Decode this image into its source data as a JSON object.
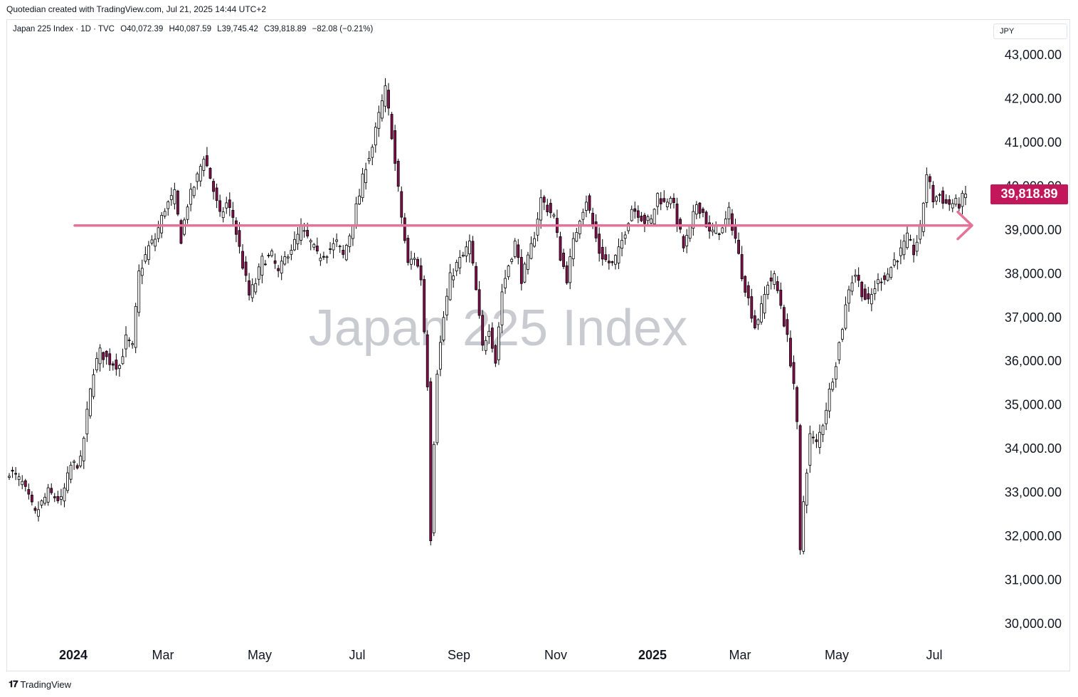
{
  "caption": "Quotedian created with TradingView.com, Jul 21, 2025 14:44 UTC+2",
  "legend": {
    "symbol": "Japan 225 Index · 1D · TVC",
    "open": "O40,072.39",
    "high": "H40,087.59",
    "low": "L39,745.42",
    "close": "C39,818.89",
    "change": "−82.08 (−0.21%)"
  },
  "currency": "JPY",
  "watermark": "Japan 225 Index",
  "last_price_label": "39,818.89",
  "footer": "TradingView",
  "colors": {
    "up": "#ffffff",
    "down": "#880e4f",
    "wick": "#000000",
    "line": "#e57399",
    "badge": "#c2185b"
  },
  "chart_data": {
    "type": "candlestick",
    "title": "Japan 225 Index",
    "interval": "1D",
    "currency": "JPY",
    "ylim": [
      29500,
      43500
    ],
    "y_ticks": [
      "30,000.00",
      "31,000.00",
      "32,000.00",
      "33,000.00",
      "34,000.00",
      "35,000.00",
      "36,000.00",
      "37,000.00",
      "38,000.00",
      "39,000.00",
      "40,000.00",
      "41,000.00",
      "42,000.00",
      "43,000.00"
    ],
    "y_tick_values": [
      30000,
      31000,
      32000,
      33000,
      34000,
      35000,
      36000,
      37000,
      38000,
      39000,
      40000,
      41000,
      42000,
      43000
    ],
    "x_ticks": [
      {
        "label": "2024",
        "index": 0,
        "bold": true
      },
      {
        "label": "Mar",
        "index": 1,
        "bold": false
      },
      {
        "label": "May",
        "index": 2,
        "bold": false
      },
      {
        "label": "Jul",
        "index": 3,
        "bold": false
      },
      {
        "label": "Sep",
        "index": 4,
        "bold": false
      },
      {
        "label": "Nov",
        "index": 5,
        "bold": false
      },
      {
        "label": "2025",
        "index": 6,
        "bold": true
      },
      {
        "label": "Mar",
        "index": 7,
        "bold": false
      },
      {
        "label": "May",
        "index": 8,
        "bold": false
      },
      {
        "label": "Jul",
        "index": 9,
        "bold": false
      }
    ],
    "last_close": 39818.89,
    "horizontal_ray": {
      "price": 39100
    },
    "close_path": [
      [
        0,
        33500
      ],
      [
        4,
        33200
      ],
      [
        8,
        32500
      ],
      [
        12,
        33000
      ],
      [
        16,
        32800
      ],
      [
        19,
        33600
      ],
      [
        22,
        33700
      ],
      [
        24,
        34800
      ],
      [
        26,
        35800
      ],
      [
        28,
        36200
      ],
      [
        31,
        36000
      ],
      [
        34,
        35900
      ],
      [
        36,
        36500
      ],
      [
        38,
        36300
      ],
      [
        40,
        38000
      ],
      [
        43,
        38600
      ],
      [
        45,
        38800
      ],
      [
        48,
        39500
      ],
      [
        51,
        39800
      ],
      [
        53,
        38800
      ],
      [
        55,
        39600
      ],
      [
        58,
        40200
      ],
      [
        60,
        40700
      ],
      [
        62,
        40200
      ],
      [
        65,
        39300
      ],
      [
        67,
        39600
      ],
      [
        69,
        39300
      ],
      [
        72,
        38200
      ],
      [
        74,
        37500
      ],
      [
        76,
        37800
      ],
      [
        78,
        38300
      ],
      [
        81,
        38400
      ],
      [
        83,
        38000
      ],
      [
        86,
        38500
      ],
      [
        88,
        38700
      ],
      [
        90,
        39000
      ],
      [
        93,
        38700
      ],
      [
        95,
        38400
      ],
      [
        98,
        38500
      ],
      [
        101,
        38700
      ],
      [
        103,
        38400
      ],
      [
        105,
        38900
      ],
      [
        108,
        39800
      ],
      [
        110,
        40500
      ],
      [
        112,
        40900
      ],
      [
        114,
        41600
      ],
      [
        116,
        42200
      ],
      [
        118,
        41200
      ],
      [
        119,
        40500
      ],
      [
        121,
        39300
      ],
      [
        123,
        38200
      ],
      [
        125,
        38400
      ],
      [
        127,
        37900
      ],
      [
        129,
        35500
      ],
      [
        130,
        32000
      ],
      [
        131,
        34200
      ],
      [
        132,
        35800
      ],
      [
        134,
        37000
      ],
      [
        136,
        37900
      ],
      [
        138,
        38200
      ],
      [
        140,
        38400
      ],
      [
        142,
        38700
      ],
      [
        144,
        37600
      ],
      [
        146,
        36300
      ],
      [
        148,
        36800
      ],
      [
        150,
        36000
      ],
      [
        152,
        37600
      ],
      [
        154,
        38200
      ],
      [
        156,
        38700
      ],
      [
        158,
        37900
      ],
      [
        160,
        38300
      ],
      [
        162,
        38900
      ],
      [
        164,
        39700
      ],
      [
        166,
        39500
      ],
      [
        168,
        39300
      ],
      [
        170,
        38400
      ],
      [
        172,
        37900
      ],
      [
        174,
        38700
      ],
      [
        176,
        39300
      ],
      [
        178,
        39700
      ],
      [
        180,
        39100
      ],
      [
        182,
        38500
      ],
      [
        184,
        38300
      ],
      [
        186,
        38200
      ],
      [
        188,
        38500
      ],
      [
        190,
        39000
      ],
      [
        192,
        39500
      ],
      [
        194,
        39400
      ],
      [
        196,
        39200
      ],
      [
        198,
        39200
      ],
      [
        200,
        39800
      ],
      [
        202,
        39600
      ],
      [
        204,
        39800
      ],
      [
        206,
        39200
      ],
      [
        208,
        38600
      ],
      [
        210,
        39000
      ],
      [
        212,
        39600
      ],
      [
        214,
        39400
      ],
      [
        216,
        38900
      ],
      [
        218,
        39000
      ],
      [
        220,
        39000
      ],
      [
        222,
        39400
      ],
      [
        224,
        38800
      ],
      [
        226,
        38000
      ],
      [
        228,
        37400
      ],
      [
        230,
        36800
      ],
      [
        232,
        37200
      ],
      [
        234,
        37800
      ],
      [
        236,
        37900
      ],
      [
        238,
        37300
      ],
      [
        240,
        36500
      ],
      [
        242,
        35500
      ],
      [
        243,
        34500
      ],
      [
        244,
        31600
      ],
      [
        245,
        32800
      ],
      [
        247,
        34300
      ],
      [
        249,
        34100
      ],
      [
        251,
        34600
      ],
      [
        253,
        35300
      ],
      [
        255,
        36000
      ],
      [
        257,
        36800
      ],
      [
        259,
        37700
      ],
      [
        261,
        38000
      ],
      [
        263,
        37600
      ],
      [
        265,
        37300
      ],
      [
        267,
        37700
      ],
      [
        269,
        37900
      ],
      [
        271,
        38000
      ],
      [
        273,
        38300
      ],
      [
        275,
        38500
      ],
      [
        277,
        38800
      ],
      [
        279,
        38500
      ],
      [
        281,
        39000
      ],
      [
        283,
        40300
      ],
      [
        285,
        39700
      ],
      [
        287,
        39800
      ],
      [
        289,
        39600
      ],
      [
        291,
        39600
      ],
      [
        293,
        39600
      ],
      [
        295,
        39819
      ]
    ]
  }
}
